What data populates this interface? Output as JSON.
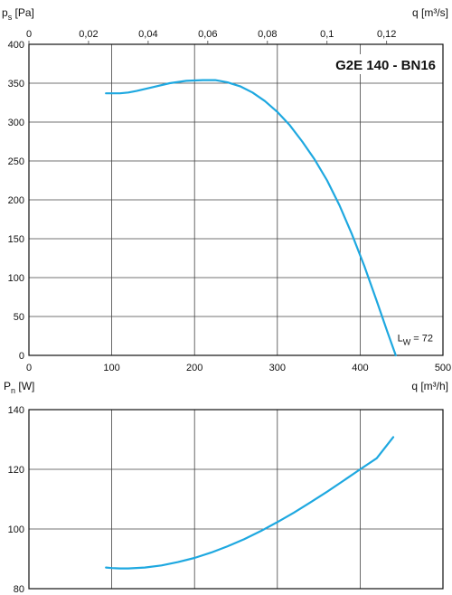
{
  "chart_data": [
    {
      "type": "line",
      "title": "G2E 140 - BN16",
      "xlabel": "q [m³/h]",
      "x2label": "q [m³/s]",
      "ylabel": "p",
      "ylabel_sub": "s",
      "ylabel_unit": " [Pa]",
      "xlim": [
        0,
        500
      ],
      "x2lim": [
        0,
        0.1389
      ],
      "ylim": [
        0,
        400
      ],
      "xticks": [
        0,
        100,
        200,
        300,
        400,
        500
      ],
      "x2ticks": [
        {
          "value": 0,
          "label": "0"
        },
        {
          "value": 0.02,
          "label": "0,02"
        },
        {
          "value": 0.04,
          "label": "0,04"
        },
        {
          "value": 0.06,
          "label": "0,06"
        },
        {
          "value": 0.08,
          "label": "0,08"
        },
        {
          "value": 0.1,
          "label": "0,1"
        },
        {
          "value": 0.12,
          "label": "0,12"
        }
      ],
      "yticks": [
        0,
        50,
        100,
        150,
        200,
        250,
        300,
        350,
        400
      ],
      "grid": true,
      "series": [
        {
          "color": "#1ea8e0",
          "x": [
            93,
            100,
            110,
            120,
            130,
            150,
            170,
            190,
            210,
            225,
            240,
            255,
            270,
            285,
            300,
            315,
            330,
            345,
            360,
            375,
            390,
            405,
            420,
            433,
            443
          ],
          "y": [
            337,
            337,
            337,
            338,
            340,
            345,
            350,
            353,
            354,
            354,
            351,
            346,
            338,
            327,
            313,
            296,
            275,
            252,
            225,
            193,
            156,
            115,
            70,
            30,
            0
          ]
        }
      ],
      "annotation": {
        "text": "L",
        "sub": "W",
        "rest": " = 72",
        "x": 445,
        "y": 18
      }
    },
    {
      "type": "line",
      "xlabel": "",
      "ylabel": "P",
      "ylabel_sub": "n",
      "ylabel_unit": " [W]",
      "xlim": [
        0,
        500
      ],
      "ylim": [
        80,
        140
      ],
      "yticks": [
        80,
        100,
        120,
        140
      ],
      "grid": true,
      "series": [
        {
          "color": "#1ea8e0",
          "x": [
            93,
            100,
            110,
            120,
            140,
            160,
            180,
            200,
            220,
            240,
            260,
            280,
            300,
            320,
            340,
            360,
            380,
            400,
            420,
            440
          ],
          "y": [
            87.1,
            86.9,
            86.8,
            86.8,
            87.1,
            87.8,
            88.9,
            90.3,
            92.1,
            94.2,
            96.6,
            99.3,
            102.3,
            105.5,
            108.9,
            112.5,
            116.2,
            120.0,
            123.7,
            130.8
          ]
        }
      ]
    }
  ]
}
